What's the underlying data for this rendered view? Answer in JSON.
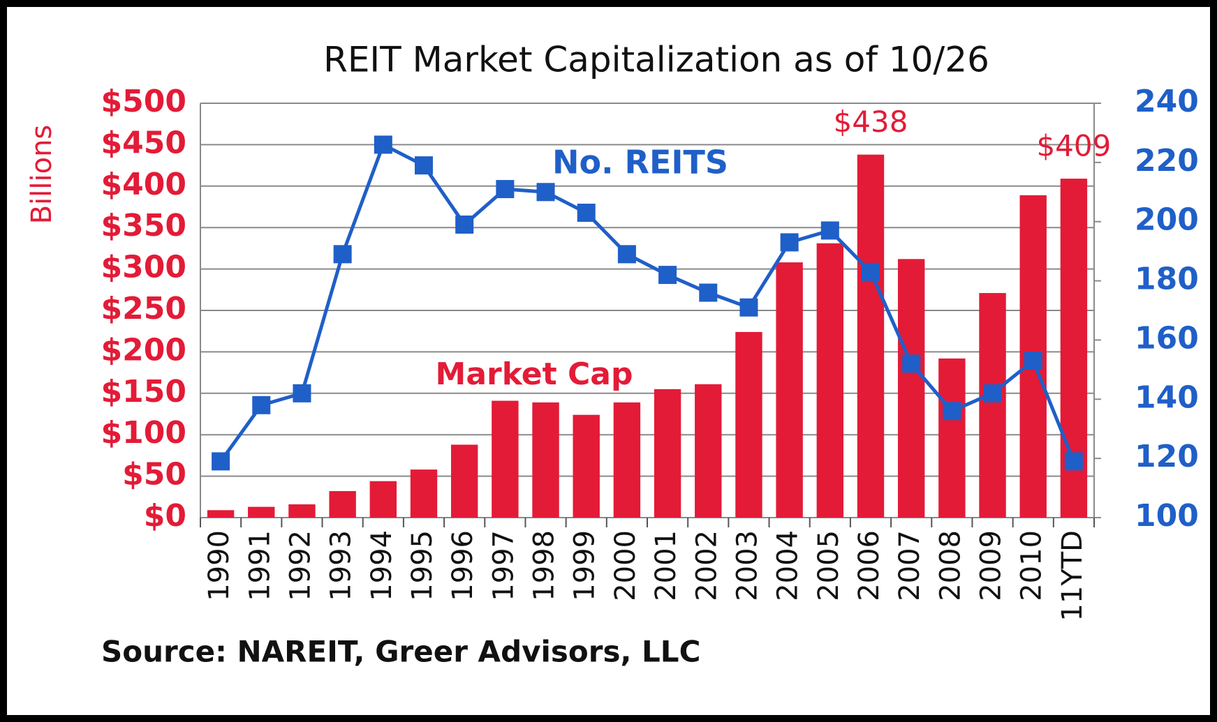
{
  "chart_data": {
    "type": "bar_line",
    "title": "REIT Market Capitalization as of 10/26",
    "source": "Source: NAREIT, Greer Advisors, LLC",
    "y_label": "Billions",
    "categories": [
      "1990",
      "1991",
      "1992",
      "1993",
      "1994",
      "1995",
      "1996",
      "1997",
      "1998",
      "1999",
      "2000",
      "2001",
      "2002",
      "2003",
      "2004",
      "2005",
      "2006",
      "2007",
      "2008",
      "2009",
      "2010",
      "11YTD"
    ],
    "series": [
      {
        "name": "Market Cap",
        "type": "bar",
        "color": "#e31b37",
        "values": [
          9,
          13,
          16,
          32,
          44,
          58,
          88,
          141,
          139,
          124,
          139,
          155,
          161,
          224,
          308,
          331,
          438,
          312,
          192,
          271,
          389,
          409
        ],
        "value_labels": [
          null,
          null,
          null,
          null,
          null,
          null,
          null,
          null,
          null,
          null,
          null,
          null,
          null,
          null,
          null,
          null,
          "$438",
          null,
          null,
          null,
          null,
          "$409"
        ]
      },
      {
        "name": "No. REITS",
        "type": "line",
        "axis": "y2",
        "color": "#1f5fc8",
        "values": [
          119,
          138,
          142,
          189,
          226,
          219,
          199,
          211,
          210,
          203,
          189,
          182,
          176,
          171,
          193,
          197,
          183,
          152,
          136,
          142,
          153,
          119
        ]
      }
    ],
    "ylim": [
      0,
      500
    ],
    "yticks": [
      {
        "value": 0,
        "label": "$0"
      },
      {
        "value": 50,
        "label": "$50"
      },
      {
        "value": 100,
        "label": "$100"
      },
      {
        "value": 150,
        "label": "$150"
      },
      {
        "value": 200,
        "label": "$200"
      },
      {
        "value": 250,
        "label": "$250"
      },
      {
        "value": 300,
        "label": "$300"
      },
      {
        "value": 350,
        "label": "$350"
      },
      {
        "value": 400,
        "label": "$400"
      },
      {
        "value": 450,
        "label": "$450"
      },
      {
        "value": 500,
        "label": "$500"
      }
    ],
    "y2lim": [
      100,
      240
    ],
    "y2ticks": [
      100,
      120,
      140,
      160,
      180,
      200,
      220,
      240
    ],
    "grid": true
  }
}
